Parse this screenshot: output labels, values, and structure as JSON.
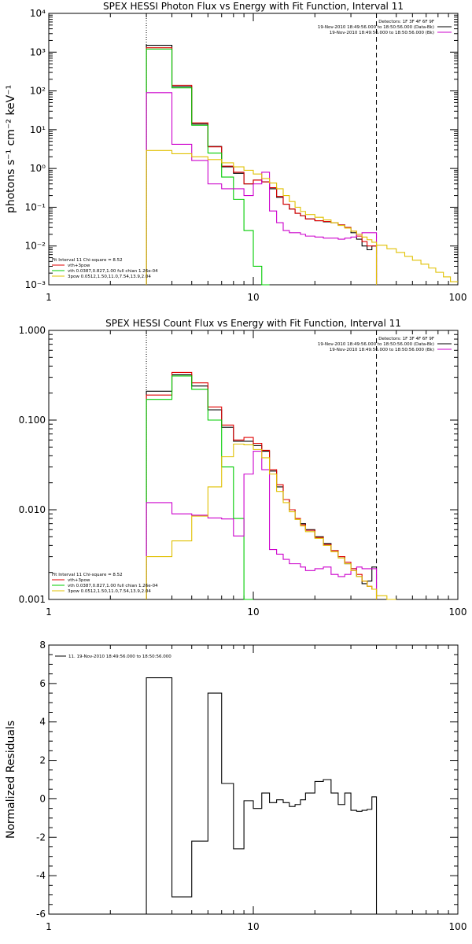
{
  "chart_data": [
    {
      "type": "line",
      "title": "SPEX HESSI Photon Flux vs Energy with Fit Function, Interval 11",
      "xlabel": "",
      "ylabel": "photons s⁻¹ cm⁻² keV⁻¹",
      "xscale": "log",
      "yscale": "log",
      "xlim": [
        1,
        100
      ],
      "ylim": [
        0.001,
        10000
      ],
      "x_tick_labels": [
        "1",
        "10",
        "100"
      ],
      "y_tick_labels": [
        "10⁻³",
        "10⁻²",
        "10⁻¹",
        "10⁰",
        "10¹",
        "10²",
        "10³",
        "10⁴"
      ],
      "y_tick_values": [
        0.001,
        0.01,
        0.1,
        1,
        10,
        100,
        1000,
        10000
      ],
      "vlines": [
        {
          "x": 3.0,
          "style": "dotted"
        },
        {
          "x": 40.0,
          "style": "dashed"
        }
      ],
      "legend_tr": [
        "Detectors: 1F 3F 4F 6F 9F",
        "19-Nov-2010 18:49:56.000 to 18:50:56.000 (Data-Bk)",
        "19-Nov-2010 18:49:56.000 to 18:50:56.000 (Bk)"
      ],
      "legend_bl": [
        "Fit Interval 11   Chi-square = 8.52",
        "vth+3pow",
        "vth 0.0387,0.827,1.00  full chian 1.26e-04",
        "3pow 0.0512,1.50,11.0,7.54,13.9,2.04"
      ],
      "edges": [
        3.0,
        4.0,
        5.0,
        6.0,
        7.0,
        8.0,
        9.0,
        10.0,
        11.0,
        12.0,
        13.0,
        14.0,
        15.0,
        16.0,
        17.0,
        18.0,
        20.0,
        22.0,
        24.0,
        26.0,
        28.0,
        30.0,
        32.0,
        34.0,
        36.0,
        38.0,
        40.0
      ],
      "series": [
        {
          "name": "Data-Bk",
          "color": "#000000",
          "values": [
            1500,
            130,
            14,
            3.7,
            1.1,
            0.75,
            0.4,
            0.5,
            0.45,
            0.3,
            0.18,
            0.12,
            0.09,
            0.07,
            0.06,
            0.05,
            0.045,
            0.042,
            0.04,
            0.035,
            0.03,
            0.022,
            0.015,
            0.01,
            0.008,
            0.01
          ]
        },
        {
          "name": "vth+3pow",
          "color": "#e00000",
          "values": [
            1300,
            140,
            15,
            3.6,
            1.15,
            0.8,
            0.4,
            0.5,
            0.45,
            0.32,
            0.19,
            0.12,
            0.09,
            0.07,
            0.06,
            0.05,
            0.045,
            0.043,
            0.04,
            0.035,
            0.03,
            0.024,
            0.018,
            0.013,
            0.01,
            0.01
          ]
        },
        {
          "name": "vth",
          "color": "#00cc00",
          "values": [
            1200,
            120,
            13,
            2.5,
            0.6,
            0.16,
            0.025,
            0.003,
            0.001
          ]
        },
        {
          "name": "Bk",
          "color": "#cc00cc",
          "values": [
            90,
            4.2,
            1.6,
            0.4,
            0.3,
            0.3,
            0.2,
            0.4,
            0.8,
            0.08,
            0.04,
            0.025,
            0.022,
            0.022,
            0.02,
            0.018,
            0.017,
            0.016,
            0.016,
            0.015,
            0.016,
            0.017,
            0.02,
            0.022,
            0.022,
            0.022
          ]
        },
        {
          "name": "3pow",
          "color": "#e0c000",
          "values": [
            2.9,
            2.4,
            2.0,
            1.7,
            1.4,
            1.1,
            0.9,
            0.72,
            0.55,
            0.42,
            0.3,
            0.2,
            0.14,
            0.1,
            0.078,
            0.065,
            0.055,
            0.047,
            0.04,
            0.034,
            0.029,
            0.024,
            0.02,
            0.017,
            0.0145,
            0.0125
          ],
          "extra_edges": [
            40,
            45,
            50,
            55,
            60,
            66,
            72,
            78,
            85,
            92,
            100
          ],
          "extra_values": [
            0.0105,
            0.0085,
            0.0068,
            0.0054,
            0.0043,
            0.0034,
            0.0027,
            0.0021,
            0.0016,
            0.0012
          ]
        }
      ]
    },
    {
      "type": "line",
      "title": "SPEX HESSI Count Flux vs Energy with Fit Function, Interval 11",
      "xlabel": "",
      "ylabel": "",
      "xscale": "log",
      "yscale": "log",
      "xlim": [
        1,
        100
      ],
      "ylim": [
        0.001,
        1.0
      ],
      "x_tick_labels": [
        "1",
        "10",
        "100"
      ],
      "y_tick_labels": [
        "0.001",
        "0.010",
        "0.100",
        "1.000"
      ],
      "y_tick_values": [
        0.001,
        0.01,
        0.1,
        1.0
      ],
      "vlines": [
        {
          "x": 3.0,
          "style": "dotted"
        },
        {
          "x": 40.0,
          "style": "dashed"
        }
      ],
      "legend_tr": [
        "Detectors: 1F 3F 4F 6F 9F",
        "19-Nov-2010 18:49:56.000 to 18:50:56.000 (Data-Bk)",
        "19-Nov-2010 18:49:56.000 to 18:50:56.000 (Bk)"
      ],
      "legend_bl": [
        "Fit Interval 11   Chi-square = 8.52",
        "vth+3pow",
        "vth 0.0387,0.827,1.00  full chian 1.26e-04",
        "3pow 0.0512,1.50,11.0,7.54,13.9,2.04"
      ],
      "edges": [
        3.0,
        4.0,
        5.0,
        6.0,
        7.0,
        8.0,
        9.0,
        10.0,
        11.0,
        12.0,
        13.0,
        14.0,
        15.0,
        16.0,
        17.0,
        18.0,
        20.0,
        22.0,
        24.0,
        26.0,
        28.0,
        30.0,
        32.0,
        34.0,
        36.0,
        38.0,
        40.0
      ],
      "series": [
        {
          "name": "Data-Bk",
          "color": "#000000",
          "values": [
            0.21,
            0.32,
            0.24,
            0.13,
            0.083,
            0.058,
            0.058,
            0.052,
            0.045,
            0.027,
            0.018,
            0.013,
            0.01,
            0.008,
            0.007,
            0.006,
            0.005,
            0.0042,
            0.0035,
            0.003,
            0.0025,
            0.0022,
            0.0018,
            0.0015,
            0.0016,
            0.0023
          ]
        },
        {
          "name": "vth+3pow",
          "color": "#e00000",
          "values": [
            0.19,
            0.34,
            0.26,
            0.14,
            0.088,
            0.06,
            0.064,
            0.055,
            0.046,
            0.028,
            0.019,
            0.013,
            0.01,
            0.008,
            0.0068,
            0.0059,
            0.0049,
            0.0041,
            0.0035,
            0.003,
            0.0026,
            0.0022,
            0.0019,
            0.0016,
            0.0014,
            0.0013
          ]
        },
        {
          "name": "vth",
          "color": "#00cc00",
          "values": [
            0.17,
            0.31,
            0.22,
            0.1,
            0.03,
            0.008,
            0.001
          ]
        },
        {
          "name": "Bk",
          "color": "#cc00cc",
          "values": [
            0.012,
            0.009,
            0.0087,
            0.0081,
            0.0079,
            0.0051,
            0.025,
            0.045,
            0.028,
            0.0036,
            0.0032,
            0.0028,
            0.0025,
            0.0025,
            0.0023,
            0.0021,
            0.0022,
            0.0023,
            0.0019,
            0.0018,
            0.0019,
            0.0021,
            0.0023,
            0.0022,
            0.0022,
            0.0022
          ]
        },
        {
          "name": "3pow",
          "color": "#e0c000",
          "values": [
            0.003,
            0.0045,
            0.0085,
            0.018,
            0.039,
            0.054,
            0.053,
            0.047,
            0.038,
            0.025,
            0.016,
            0.012,
            0.0095,
            0.0078,
            0.0066,
            0.0057,
            0.0048,
            0.004,
            0.0034,
            0.0029,
            0.0025,
            0.0021,
            0.0018,
            0.0016,
            0.0014,
            0.0013
          ],
          "extra_edges": [
            40,
            45,
            50
          ],
          "extra_values": [
            0.0011,
            0.001
          ]
        }
      ]
    },
    {
      "type": "line",
      "title": "",
      "xlabel": "",
      "ylabel": "Normalized Residuals",
      "xscale": "log",
      "yscale": "linear",
      "xlim": [
        1,
        100
      ],
      "ylim": [
        -6,
        8
      ],
      "x_tick_labels": [
        "1",
        "10",
        "100"
      ],
      "y_tick_labels": [
        "-6",
        "-4",
        "-2",
        "0",
        "2",
        "4",
        "6",
        "8"
      ],
      "y_tick_values": [
        -6,
        -4,
        -2,
        0,
        2,
        4,
        6,
        8
      ],
      "vlines": [],
      "legend_tl": [
        "11. 19-Nov-2010 18:49:56.000 to 18:50:56.000"
      ],
      "edges": [
        3.0,
        4.0,
        5.0,
        6.0,
        7.0,
        8.0,
        9.0,
        10.0,
        11.0,
        12.0,
        13.0,
        14.0,
        15.0,
        16.0,
        17.0,
        18.0,
        20.0,
        22.0,
        24.0,
        26.0,
        28.0,
        30.0,
        32.0,
        34.0,
        36.0,
        38.0,
        40.0
      ],
      "series": [
        {
          "name": "residuals",
          "color": "#000000",
          "values": [
            6.3,
            -5.1,
            -2.2,
            5.5,
            0.8,
            -2.6,
            -0.1,
            -0.5,
            0.3,
            -0.2,
            -0.05,
            -0.2,
            -0.4,
            -0.3,
            -0.05,
            0.3,
            0.9,
            1.0,
            0.3,
            -0.3,
            0.3,
            -0.6,
            -0.65,
            -0.6,
            -0.55,
            0.1
          ]
        }
      ]
    }
  ]
}
